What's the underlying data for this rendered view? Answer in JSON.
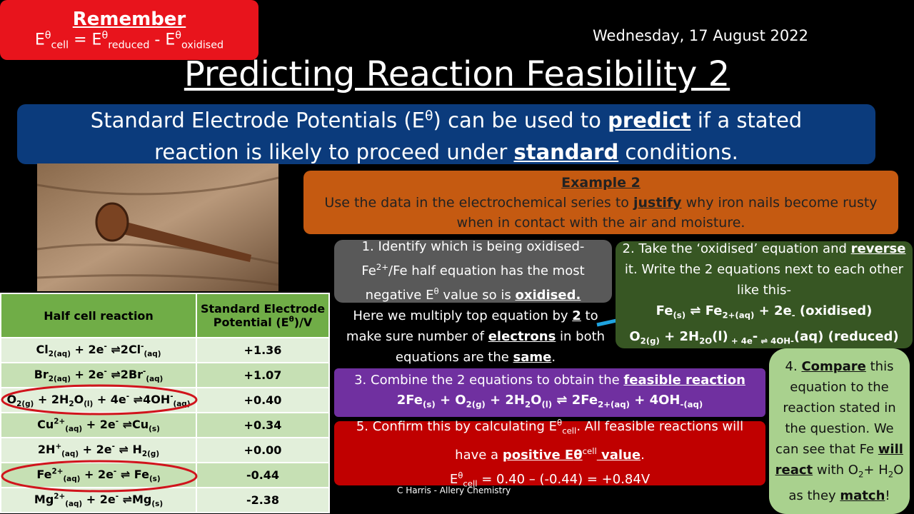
{
  "remember": {
    "title": "Remember",
    "formula": [
      "E",
      "θ",
      "cell",
      " = E",
      "θ",
      "reduced",
      " - E",
      "θ",
      "oxidised"
    ]
  },
  "date": "Wednesday, 17 August 2022",
  "title": "Predicting Reaction Feasibility 2",
  "intro": [
    "Standard Electrode Potentials (E",
    "θ",
    ") can be used to ",
    "predict",
    " if a stated reaction is likely to proceed under ",
    "standard",
    " conditions."
  ],
  "example": {
    "title": "Example 2",
    "text": [
      "Use the data in the electrochemical series to ",
      "justify",
      " why iron nails become rusty when in contact with the air and moisture."
    ]
  },
  "table": {
    "header": {
      "reaction": "Half cell reaction",
      "potential": [
        "Standard  Electrode Potential  (E",
        "θ",
        ")/V"
      ]
    },
    "rows": [
      {
        "reaction": [
          "Cl",
          "2(aq)",
          " + 2e",
          "-",
          " ⇌2Cl",
          "-",
          "(aq)"
        ],
        "potential": "+1.36"
      },
      {
        "reaction": [
          "Br",
          "2(aq)",
          " + 2e",
          "-",
          " ⇌2Br",
          "-",
          "(aq)"
        ],
        "potential": "+1.07"
      },
      {
        "reaction": [
          "O",
          "2(g)",
          " + 2H",
          "2",
          "O",
          "(l)",
          " + 4e",
          "-",
          " ⇌4OH",
          "-",
          "(aq)"
        ],
        "potential": "+0.40"
      },
      {
        "reaction": [
          "Cu",
          "2+",
          "(aq)",
          " + 2e",
          "-",
          " ⇌Cu",
          "(s)"
        ],
        "potential": "+0.34"
      },
      {
        "reaction": [
          "2H",
          "+",
          "(aq)",
          " + 2e",
          "-",
          " ⇌ H",
          "2(g)"
        ],
        "potential": "+0.00"
      },
      {
        "reaction": [
          "Fe",
          "2+",
          "(aq)",
          " + 2e",
          "-",
          " ⇌ Fe",
          "(s)"
        ],
        "potential": "-0.44"
      },
      {
        "reaction": [
          "Mg",
          "2+",
          "(aq)",
          " + 2e",
          "-",
          " ⇌Mg",
          "(s)"
        ],
        "potential": "-2.38"
      }
    ]
  },
  "step1": [
    "1. Identify which is being oxidised- Fe",
    "2+",
    "/Fe half equation has the most negative E",
    "θ",
    " value so is ",
    "oxidised."
  ],
  "note": [
    "Here we multiply top equation by ",
    "2",
    " to make sure number of ",
    "electrons",
    " in both equations are the ",
    "same",
    "."
  ],
  "step2": {
    "text": [
      "2. Take the ‘oxidised’ equation and ",
      "reverse",
      " it. Write the 2 equations next to each other like this-"
    ],
    "eq1": [
      "Fe",
      "(s)",
      " ⇌ Fe",
      "2+",
      "(aq)",
      " + 2e",
      "-",
      " (oxidised)"
    ],
    "eq2": [
      "O",
      "2(g)",
      " + 2H",
      "2",
      "O",
      "(l)",
      " + 4e",
      "-",
      " ⇌ 4OH",
      "-",
      "(aq)",
      " (reduced)"
    ]
  },
  "step3": {
    "text": [
      "3. Combine the 2 equations to obtain the ",
      "feasible reaction"
    ],
    "eq": [
      "2Fe",
      "(s)",
      " + O",
      "2(g)",
      " + 2H",
      "2",
      "O",
      "(l)",
      " ⇌ 2Fe",
      "2+",
      "(aq)",
      " + 4OH",
      "-",
      "(aq)"
    ]
  },
  "step4": [
    "4. ",
    "Compare",
    " this equation to the reaction stated in the question. We can see that Fe ",
    "will react",
    " with O",
    "2",
    "+ H",
    "2",
    "O as they ",
    "match",
    "!"
  ],
  "step5": {
    "text": [
      "5. Confirm this by calculating E",
      "θ",
      "cell",
      ". All feasible reactions will have a ",
      "positive E",
      "θ",
      "cell",
      " value",
      "."
    ],
    "calc": [
      "E",
      "θ",
      "cell",
      " = 0.40 – (-0.44) = +0.84V"
    ]
  },
  "credit": "C Harris - Allery Chemistry"
}
